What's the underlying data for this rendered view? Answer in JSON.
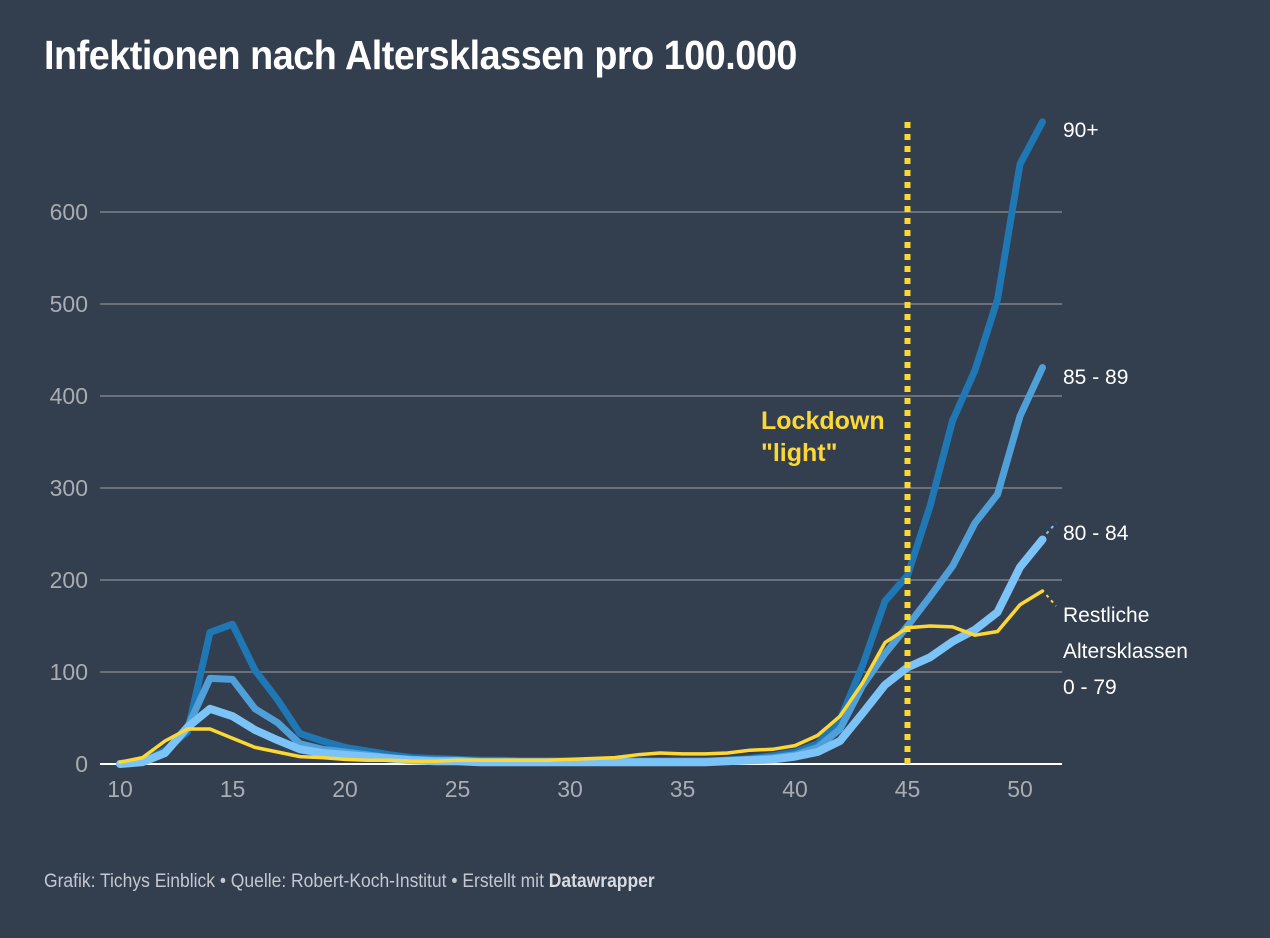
{
  "title": "Infektionen nach Altersklassen pro 100.000",
  "footer": {
    "graphic_label": "Grafik: Tichys Einblick",
    "separator": " • ",
    "source_label": "Quelle: Robert-Koch-Institut",
    "created_label": "Erstellt mit ",
    "tool_name": "Datawrapper"
  },
  "colors": {
    "background": "#333e4e",
    "grid": "#6b717a",
    "baseline": "#ffffff",
    "axis_text": "#a9adb3",
    "label_text": "#ffffff",
    "annotation": "#fdd835"
  },
  "chart_data": {
    "type": "line",
    "title": "Infektionen nach Altersklassen pro 100.000",
    "xlabel": "",
    "ylabel": "",
    "xlim": [
      10,
      51
    ],
    "ylim": [
      0,
      700
    ],
    "x_ticks": [
      10,
      15,
      20,
      25,
      30,
      35,
      40,
      45,
      50
    ],
    "y_ticks": [
      0,
      100,
      200,
      300,
      400,
      500,
      600
    ],
    "grid": true,
    "legend": "inline-right",
    "x": [
      10,
      11,
      12,
      13,
      14,
      15,
      16,
      17,
      18,
      19,
      20,
      21,
      22,
      23,
      24,
      25,
      26,
      27,
      28,
      29,
      30,
      31,
      32,
      33,
      34,
      35,
      36,
      37,
      38,
      39,
      40,
      41,
      42,
      43,
      44,
      45,
      46,
      47,
      48,
      49,
      50,
      51
    ],
    "series": [
      {
        "name": "90+",
        "color": "#1f77b4",
        "width": 7,
        "values": [
          0,
          3,
          15,
          35,
          143,
          152,
          102,
          70,
          33,
          25,
          18,
          14,
          10,
          7,
          6,
          5,
          4,
          4,
          3,
          3,
          3,
          3,
          3,
          3,
          3,
          3,
          3,
          4,
          6,
          9,
          13,
          22,
          48,
          107,
          177,
          205,
          280,
          373,
          428,
          505,
          652,
          698
        ]
      },
      {
        "name": "85 - 89",
        "color": "#4f9fd8",
        "width": 7,
        "values": [
          0,
          2,
          12,
          40,
          93,
          92,
          60,
          45,
          22,
          16,
          13,
          10,
          7,
          5,
          4,
          4,
          3,
          3,
          3,
          3,
          3,
          3,
          3,
          3,
          3,
          3,
          3,
          4,
          5,
          7,
          10,
          18,
          38,
          85,
          120,
          150,
          182,
          215,
          262,
          293,
          378,
          431
        ]
      },
      {
        "name": "80 - 84",
        "color": "#7cc3f8",
        "width": 8,
        "values": [
          0,
          2,
          12,
          40,
          60,
          52,
          37,
          26,
          16,
          12,
          10,
          8,
          6,
          4,
          3,
          3,
          2,
          2,
          2,
          2,
          2,
          2,
          2,
          2,
          2,
          2,
          2,
          3,
          4,
          5,
          8,
          13,
          25,
          55,
          86,
          105,
          116,
          133,
          146,
          165,
          214,
          244
        ]
      },
      {
        "name": "Restliche Altersklassen 0 - 79",
        "label_lines": [
          "Restliche",
          "Altersklassen",
          "0 - 79"
        ],
        "color": "#fdd835",
        "width": 3.5,
        "values": [
          2,
          7,
          25,
          38,
          38,
          28,
          18,
          13,
          8,
          7,
          5,
          4,
          4,
          3,
          3,
          4,
          4,
          4,
          4,
          4,
          5,
          6,
          7,
          10,
          12,
          11,
          11,
          12,
          15,
          16,
          20,
          31,
          52,
          88,
          132,
          148,
          150,
          149,
          140,
          144,
          173,
          188
        ]
      }
    ],
    "annotations": [
      {
        "type": "vline",
        "x": 45,
        "style": "dotted",
        "label_lines": [
          "Lockdown",
          "\"light\""
        ]
      }
    ]
  }
}
